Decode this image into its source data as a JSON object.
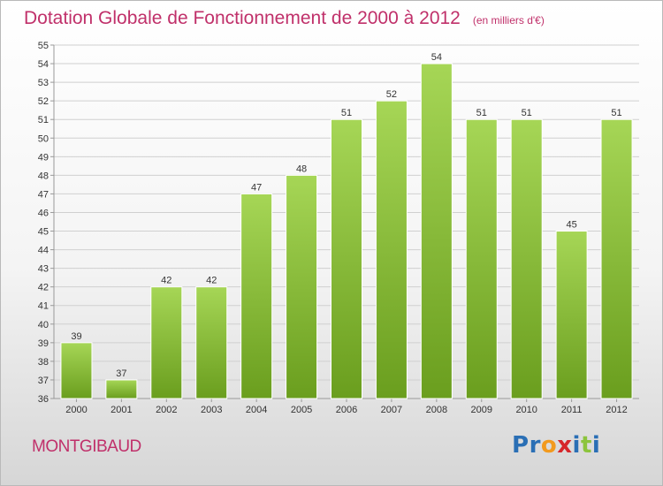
{
  "header": {
    "title": "Dotation Globale de Fonctionnement de 2000 à 2012",
    "unit": "(en milliers d'€)"
  },
  "footer": {
    "commune": "MONTGIBAUD",
    "logo_text": "Proxiti",
    "logo_letters": [
      {
        "ch": "P",
        "color": "#2a6fb5"
      },
      {
        "ch": "r",
        "color": "#2a6fb5"
      },
      {
        "ch": "o",
        "color": "#f29a1e"
      },
      {
        "ch": "x",
        "color": "#d6262a"
      },
      {
        "ch": "i",
        "color": "#2a6fb5"
      },
      {
        "ch": "t",
        "color": "#8cc43c"
      },
      {
        "ch": "i",
        "color": "#2a6fb5"
      }
    ]
  },
  "colors": {
    "bar_top": "#a6d656",
    "bar_bottom": "#6a9e1e",
    "bar_stroke": "#ffffff",
    "grid": "#d0d0d0",
    "accent": "#c0306a"
  },
  "chart_data": {
    "type": "bar",
    "title": "Dotation Globale de Fonctionnement de 2000 à 2012",
    "subtitle": "(en milliers d'€)",
    "categories": [
      "2000",
      "2001",
      "2002",
      "2003",
      "2004",
      "2005",
      "2006",
      "2007",
      "2008",
      "2009",
      "2010",
      "2011",
      "2012"
    ],
    "values": [
      39,
      37,
      42,
      42,
      47,
      48,
      51,
      52,
      54,
      51,
      51,
      45,
      51
    ],
    "ylim": [
      36,
      55
    ],
    "yticks": [
      36,
      37,
      38,
      39,
      40,
      41,
      42,
      43,
      44,
      45,
      46,
      47,
      48,
      49,
      50,
      51,
      52,
      53,
      54,
      55
    ],
    "grid": true,
    "xlabel": "",
    "ylabel": ""
  }
}
